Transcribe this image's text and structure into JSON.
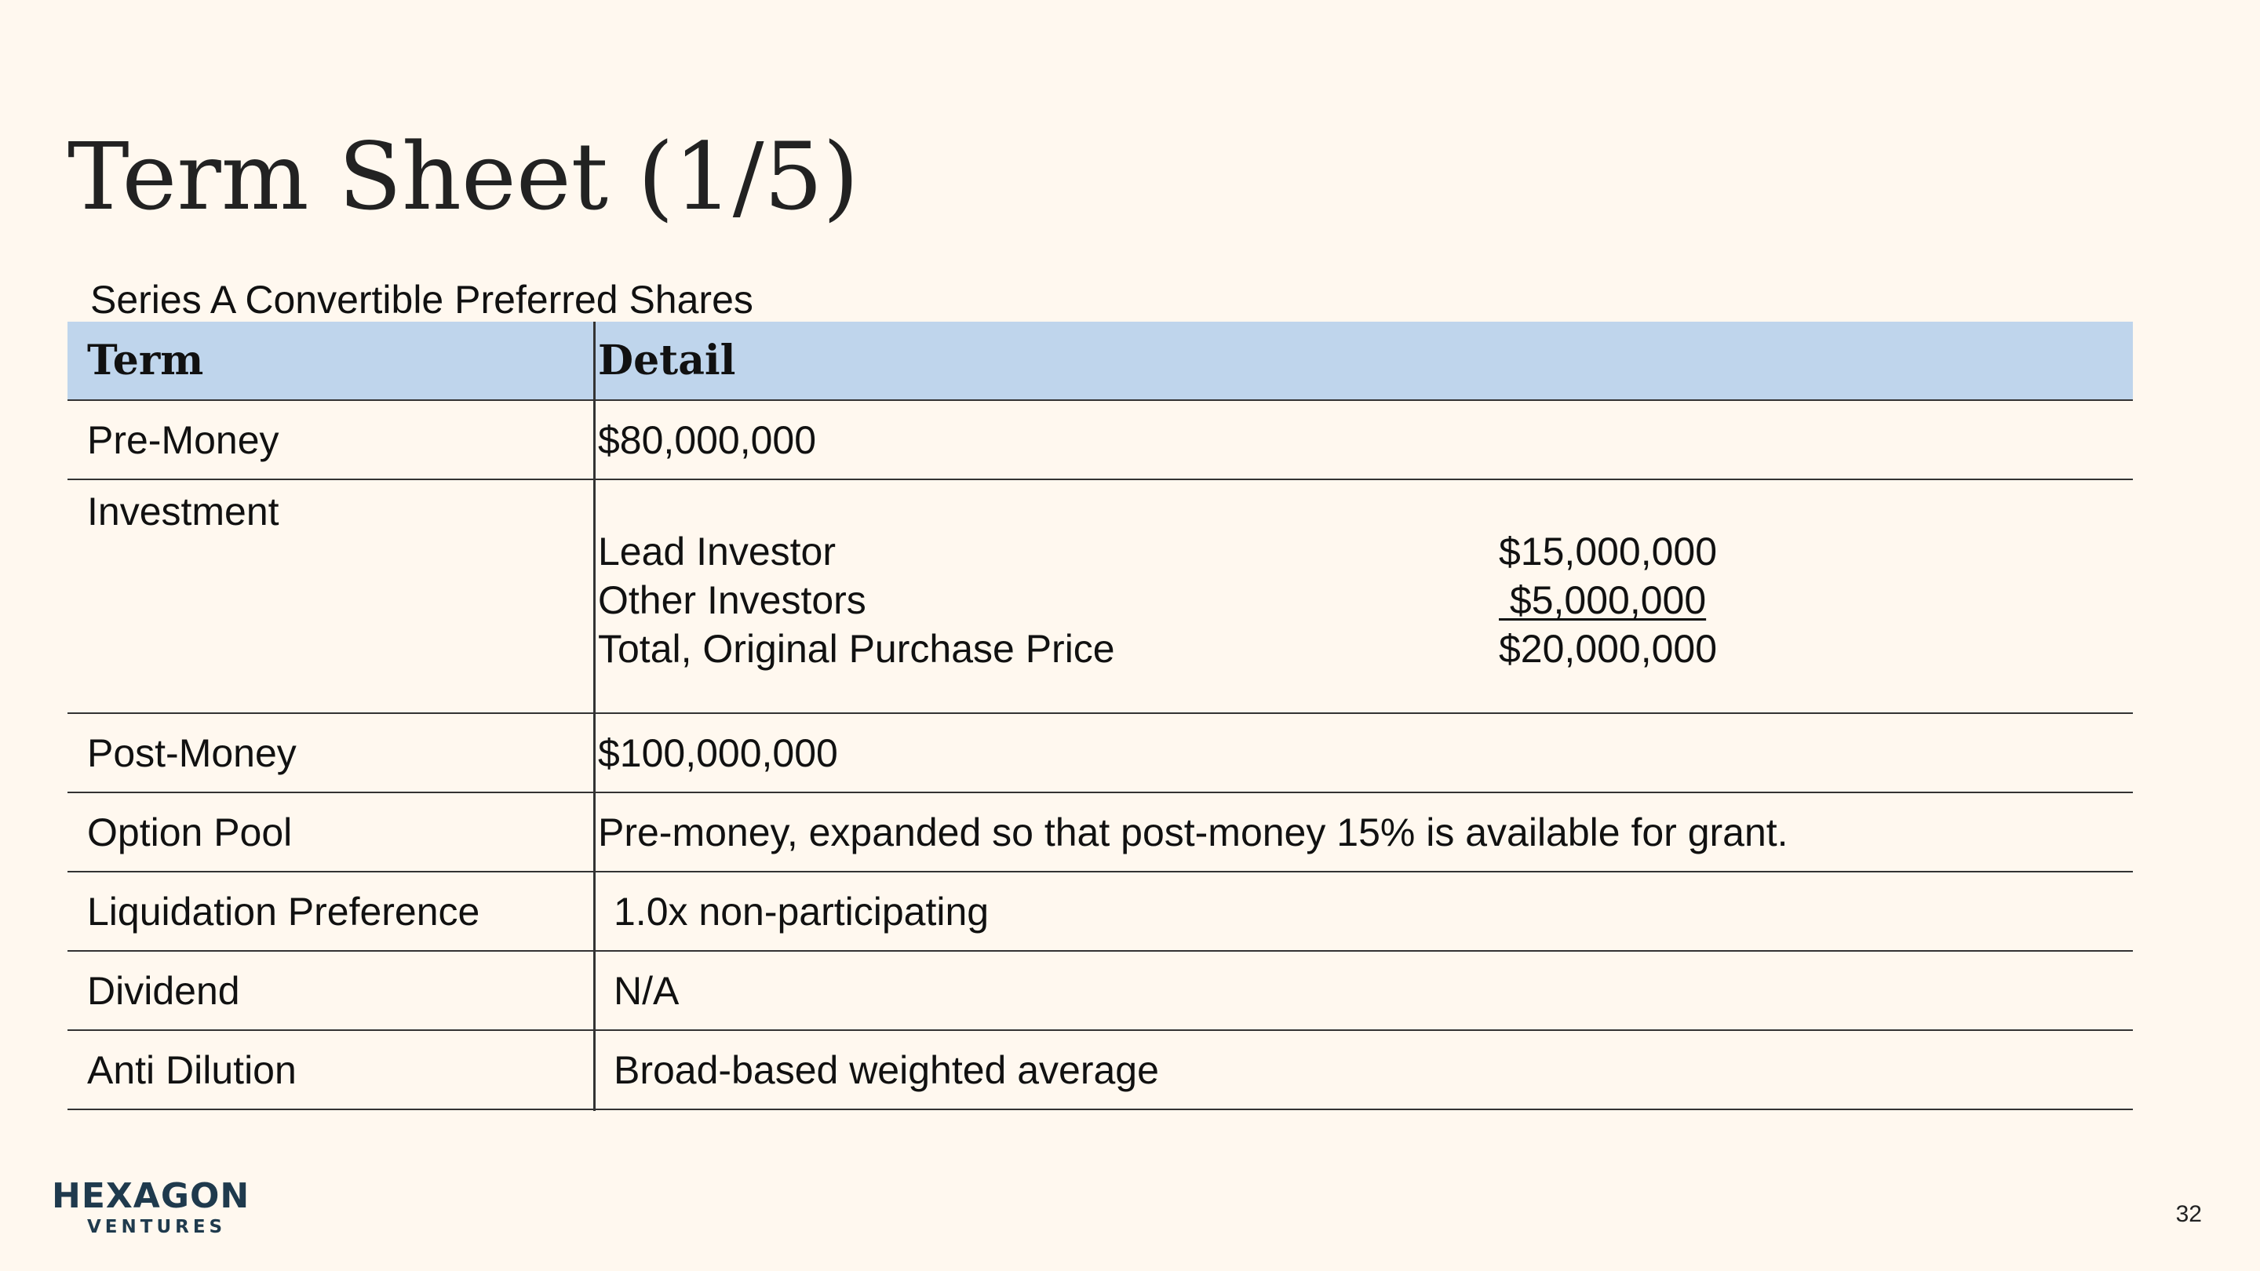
{
  "slide": {
    "title": "Term Sheet (1/5)",
    "subtitle": "Series A Convertible Preferred Shares",
    "page_number": "32"
  },
  "table": {
    "headers": {
      "term": "Term",
      "detail": "Detail"
    },
    "rows": [
      {
        "term": "Pre-Money",
        "detail": "$80,000,000"
      },
      {
        "term": "Investment",
        "detail": ""
      },
      {
        "term": "Post-Money",
        "detail": "$100,000,000"
      },
      {
        "term": "Option Pool",
        "detail": "Pre-money, expanded so that post-money 15% is available for grant."
      },
      {
        "term": "Liquidation Preference",
        "detail": "1.0x non-participating"
      },
      {
        "term": "Dividend",
        "detail": "N/A"
      },
      {
        "term": "Anti Dilution",
        "detail": "Broad-based weighted average"
      }
    ],
    "investment_breakdown": [
      {
        "label": "Lead Investor",
        "amount": "$15,000,000"
      },
      {
        "label": "Other Investors",
        "amount": " $5,000,000"
      },
      {
        "label": "Total, Original Purchase Price",
        "amount": "$20,000,000"
      }
    ]
  },
  "logo": {
    "main": "HEXAGON",
    "sub": "VENTURES",
    "colors": {
      "dark": "#1f3a4d",
      "orange": "#e07b2a",
      "teal": "#3a8f8a"
    }
  },
  "colors": {
    "background": "#fff8ef",
    "header_fill": "#bfd5ec",
    "rule": "#333333"
  }
}
